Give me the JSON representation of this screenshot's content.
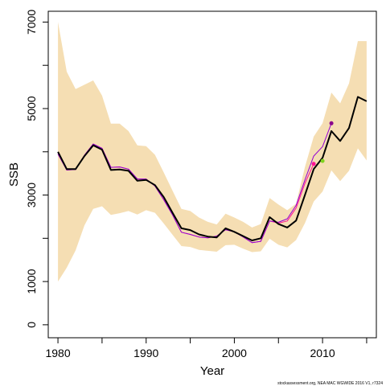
{
  "chart_data": {
    "type": "line",
    "title": "",
    "xlabel": "Year",
    "ylabel": "SSB",
    "xlim": [
      1978.9,
      2016.1
    ],
    "ylim": [
      -300,
      7250
    ],
    "x_ticks": [
      1980,
      1990,
      2000,
      2010
    ],
    "x_minor_ticks": [
      1985,
      1995,
      2005,
      2015
    ],
    "y_ticks": [
      0,
      1000,
      3000,
      5000,
      7000
    ],
    "y_minor_ticks": [
      2000,
      4000,
      6000
    ],
    "grid": false,
    "credit": "stockassessment.org, NEA MAC WGWIDE 2016 V1, r7324",
    "colors": {
      "band": "#f5deb3",
      "main_line": "#000000",
      "retro_line_1": "#ff1493",
      "retro_line_2": "#9400d3",
      "retro_dot_1": "#ff1493",
      "retro_dot_2": "#7fd320",
      "retro_dot_3": "#8b008b"
    },
    "years": [
      1980,
      1981,
      1982,
      1983,
      1984,
      1985,
      1986,
      1987,
      1988,
      1989,
      1990,
      1991,
      1992,
      1993,
      1994,
      1995,
      1996,
      1997,
      1998,
      1999,
      2000,
      2001,
      2002,
      2003,
      2004,
      2005,
      2006,
      2007,
      2008,
      2009,
      2010,
      2011,
      2012,
      2013,
      2014,
      2015
    ],
    "band_upper": [
      7000,
      5850,
      5450,
      5550,
      5650,
      5300,
      4650,
      4650,
      4480,
      4150,
      4130,
      3930,
      3520,
      3100,
      2680,
      2630,
      2480,
      2380,
      2320,
      2570,
      2480,
      2380,
      2250,
      2330,
      2930,
      2780,
      2650,
      2800,
      3650,
      4350,
      4660,
      5370,
      5120,
      5580,
      6560,
      6560
    ],
    "band_lower": [
      1000,
      1320,
      1720,
      2300,
      2680,
      2740,
      2540,
      2580,
      2630,
      2550,
      2650,
      2590,
      2340,
      2080,
      1820,
      1800,
      1730,
      1710,
      1690,
      1840,
      1850,
      1760,
      1680,
      1700,
      1990,
      1850,
      1790,
      1960,
      2350,
      2850,
      3080,
      3570,
      3320,
      3560,
      4080,
      3800
    ],
    "series": [
      {
        "values": [
          4000,
          3600,
          3600,
          3900,
          4150,
          4050,
          3580,
          3590,
          3560,
          3330,
          3350,
          3230,
          2950,
          2590,
          2230,
          2190,
          2090,
          2040,
          2020,
          2230,
          2150,
          2050,
          1950,
          2000,
          2490,
          2330,
          2250,
          2410,
          3000,
          3600,
          3860,
          4480,
          4250,
          4550,
          5270,
          5170
        ]
      },
      {
        "values": [
          3950,
          3580,
          3590,
          3920,
          4180,
          4080,
          3640,
          3650,
          3600,
          3370,
          3370,
          3210,
          2890,
          2540,
          2140,
          2090,
          2030,
          2010,
          2050,
          2200,
          2150,
          2030,
          1900,
          1930,
          2400,
          2350,
          2400,
          2700,
          3270,
          3720
        ]
      },
      {
        "values": [
          3950,
          3580,
          3590,
          3920,
          4180,
          4080,
          3640,
          3650,
          3600,
          3370,
          3370,
          3210,
          2890,
          2540,
          2140,
          2090,
          2030,
          2010,
          2050,
          2200,
          2150,
          2030,
          1900,
          1930,
          2400,
          2370,
          2450,
          2760,
          3350,
          3900,
          4120,
          4660
        ]
      }
    ],
    "end_points": [
      {
        "x": 2009,
        "y": 3720
      },
      {
        "x": 2010,
        "y": 3790
      },
      {
        "x": 2011,
        "y": 4660
      }
    ]
  }
}
